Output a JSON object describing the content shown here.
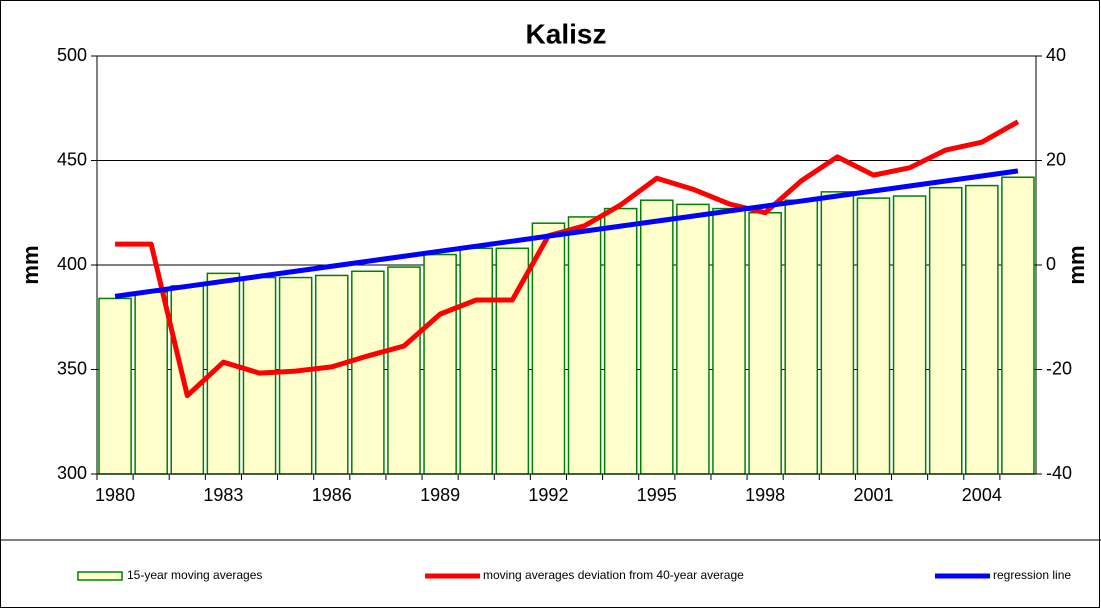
{
  "chart_data": {
    "type": "bar-line",
    "title": "Kalisz",
    "ylabel": "mm",
    "y2label": "mm",
    "categories": [
      "1980",
      null,
      null,
      "1983",
      null,
      null,
      "1986",
      null,
      null,
      "1989",
      null,
      null,
      "1992",
      null,
      null,
      "1995",
      null,
      null,
      "1998",
      null,
      null,
      "2001",
      null,
      null,
      "2004",
      null
    ],
    "ylim": [
      300,
      500
    ],
    "yticks": [
      300,
      350,
      400,
      450,
      500
    ],
    "y2lim": [
      -40,
      40
    ],
    "y2ticks": [
      -40,
      -20,
      0,
      20,
      40
    ],
    "grid": true,
    "series": [
      {
        "name": "15-year moving averages",
        "type": "bar",
        "color": "#ffffcc",
        "edgecolor": "#008000",
        "values": [
          384,
          387,
          390,
          396,
          394,
          394,
          395,
          397,
          399,
          405,
          408,
          408,
          420,
          423,
          427,
          431,
          429,
          427,
          425,
          431,
          435,
          432,
          433,
          437,
          438,
          442
        ]
      },
      {
        "name": "moving averages deviation from 40-year average",
        "type": "line",
        "axis": "y2",
        "color": "#ff0000",
        "values": [
          4,
          4,
          -25,
          -18.6,
          -20.7,
          -20.3,
          -19.5,
          -17.4,
          -15.5,
          -9.4,
          -6.7,
          -6.7,
          5.6,
          7.5,
          11.5,
          16.6,
          14.5,
          11.7,
          10,
          16.1,
          20.7,
          17.2,
          18.6,
          22,
          23.5,
          27.4
        ]
      },
      {
        "name": "regression line",
        "type": "line",
        "axis": "y2",
        "color": "#0000ff",
        "values": [
          -6,
          -5.04,
          -4.08,
          -3.12,
          -2.16,
          -1.2,
          -0.24,
          0.72,
          1.68,
          2.64,
          3.6,
          4.56,
          5.52,
          6.48,
          7.44,
          8.4,
          9.36,
          10.32,
          11.28,
          12.24,
          13.2,
          14.16,
          15.12,
          16.08,
          17.04,
          18
        ]
      }
    ]
  }
}
